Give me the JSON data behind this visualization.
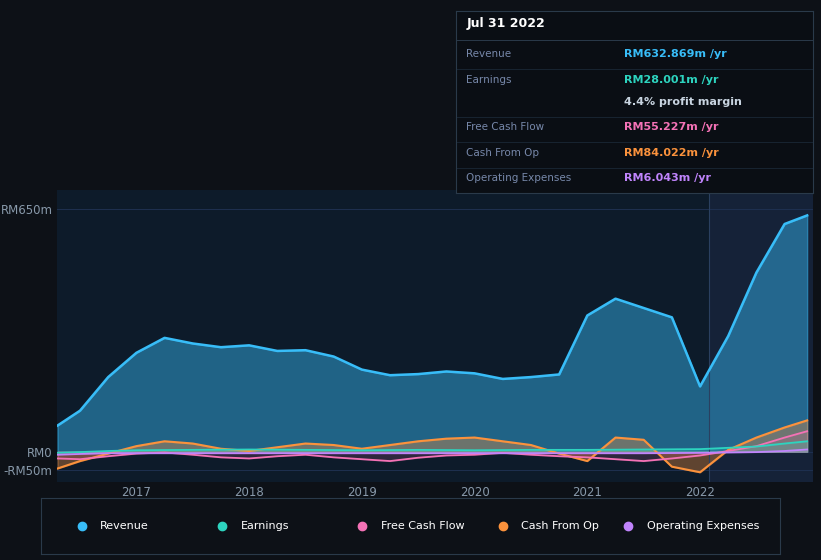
{
  "bg_color": "#0d1117",
  "plot_bg_color": "#0d1b2a",
  "plot_bg_color_right": "#152238",
  "grid_color": "#1e3050",
  "title": "Jul 31 2022",
  "info_box_title": "Jul 31 2022",
  "info_rows": [
    {
      "label": "Revenue",
      "value": "RM632.869m /yr",
      "value_color": "#38bdf8",
      "has_divider": true
    },
    {
      "label": "Earnings",
      "value": "RM28.001m /yr",
      "value_color": "#2dd4bf",
      "has_divider": false
    },
    {
      "label": "",
      "value": "4.4% profit margin",
      "value_color": "#c8d4e0",
      "has_divider": true
    },
    {
      "label": "Free Cash Flow",
      "value": "RM55.227m /yr",
      "value_color": "#f472b6",
      "has_divider": true
    },
    {
      "label": "Cash From Op",
      "value": "RM84.022m /yr",
      "value_color": "#fb923c",
      "has_divider": true
    },
    {
      "label": "Operating Expenses",
      "value": "RM6.043m /yr",
      "value_color": "#c084fc",
      "has_divider": false
    }
  ],
  "ylim": [
    -80,
    700
  ],
  "yticks": [
    -50,
    0,
    650
  ],
  "ytick_labels": [
    "-RM50m",
    "RM0",
    "RM650m"
  ],
  "xlim_start": 2016.3,
  "xlim_end": 2023.0,
  "xticks": [
    2017,
    2018,
    2019,
    2020,
    2021,
    2022
  ],
  "vline_x": 2022.08,
  "colors": {
    "revenue": "#38bdf8",
    "earnings": "#2dd4bf",
    "free_cash_flow": "#f472b6",
    "cash_from_op": "#fb923c",
    "operating_expenses": "#c084fc"
  },
  "legend_items": [
    {
      "label": "Revenue",
      "color": "#38bdf8"
    },
    {
      "label": "Earnings",
      "color": "#2dd4bf"
    },
    {
      "label": "Free Cash Flow",
      "color": "#f472b6"
    },
    {
      "label": "Cash From Op",
      "color": "#fb923c"
    },
    {
      "label": "Operating Expenses",
      "color": "#c084fc"
    }
  ],
  "revenue": {
    "x": [
      2016.3,
      2016.5,
      2016.75,
      2017.0,
      2017.25,
      2017.5,
      2017.75,
      2018.0,
      2018.25,
      2018.5,
      2018.75,
      2019.0,
      2019.25,
      2019.5,
      2019.75,
      2020.0,
      2020.25,
      2020.5,
      2020.75,
      2021.0,
      2021.25,
      2021.5,
      2021.75,
      2022.0,
      2022.25,
      2022.5,
      2022.75,
      2022.95
    ],
    "y": [
      70,
      110,
      200,
      265,
      305,
      290,
      280,
      285,
      270,
      272,
      255,
      220,
      205,
      208,
      215,
      210,
      195,
      200,
      207,
      365,
      410,
      385,
      360,
      175,
      310,
      480,
      610,
      633
    ]
  },
  "earnings": {
    "x": [
      2016.3,
      2016.5,
      2016.75,
      2017.0,
      2017.5,
      2018.0,
      2018.5,
      2019.0,
      2019.5,
      2020.0,
      2020.5,
      2021.0,
      2021.5,
      2022.0,
      2022.5,
      2022.75,
      2022.95
    ],
    "y": [
      -3,
      -1,
      2,
      4,
      5,
      6,
      5,
      4,
      5,
      4,
      5,
      5,
      6,
      7,
      14,
      22,
      28
    ]
  },
  "free_cash_flow": {
    "x": [
      2016.3,
      2016.5,
      2016.75,
      2017.0,
      2017.25,
      2017.5,
      2017.75,
      2018.0,
      2018.25,
      2018.5,
      2018.75,
      2019.0,
      2019.25,
      2019.5,
      2019.75,
      2020.0,
      2020.25,
      2020.5,
      2020.75,
      2021.0,
      2021.25,
      2021.5,
      2021.75,
      2022.0,
      2022.25,
      2022.5,
      2022.75,
      2022.95
    ],
    "y": [
      -18,
      -20,
      -12,
      -5,
      -2,
      -8,
      -15,
      -18,
      -12,
      -8,
      -15,
      -20,
      -25,
      -16,
      -10,
      -8,
      -3,
      -8,
      -12,
      -15,
      -20,
      -25,
      -18,
      -10,
      2,
      15,
      38,
      55
    ]
  },
  "cash_from_op": {
    "x": [
      2016.3,
      2016.5,
      2016.75,
      2017.0,
      2017.25,
      2017.5,
      2017.75,
      2018.0,
      2018.25,
      2018.5,
      2018.75,
      2019.0,
      2019.25,
      2019.5,
      2019.75,
      2020.0,
      2020.25,
      2020.5,
      2020.75,
      2021.0,
      2021.25,
      2021.5,
      2021.75,
      2022.0,
      2022.25,
      2022.5,
      2022.75,
      2022.95
    ],
    "y": [
      -45,
      -25,
      -5,
      15,
      28,
      22,
      8,
      2,
      12,
      22,
      18,
      8,
      18,
      28,
      35,
      38,
      28,
      18,
      -5,
      -25,
      38,
      32,
      -40,
      -55,
      5,
      38,
      65,
      84
    ]
  },
  "operating_expenses": {
    "x": [
      2016.3,
      2016.5,
      2016.75,
      2017.0,
      2017.5,
      2018.0,
      2018.5,
      2019.0,
      2019.5,
      2020.0,
      2020.5,
      2021.0,
      2021.5,
      2022.0,
      2022.5,
      2022.75,
      2022.95
    ],
    "y": [
      -8,
      -6,
      -4,
      -4,
      -4,
      -4,
      -4,
      -4,
      -4,
      -4,
      -4,
      -4,
      -4,
      -3,
      -1,
      2,
      6
    ]
  }
}
